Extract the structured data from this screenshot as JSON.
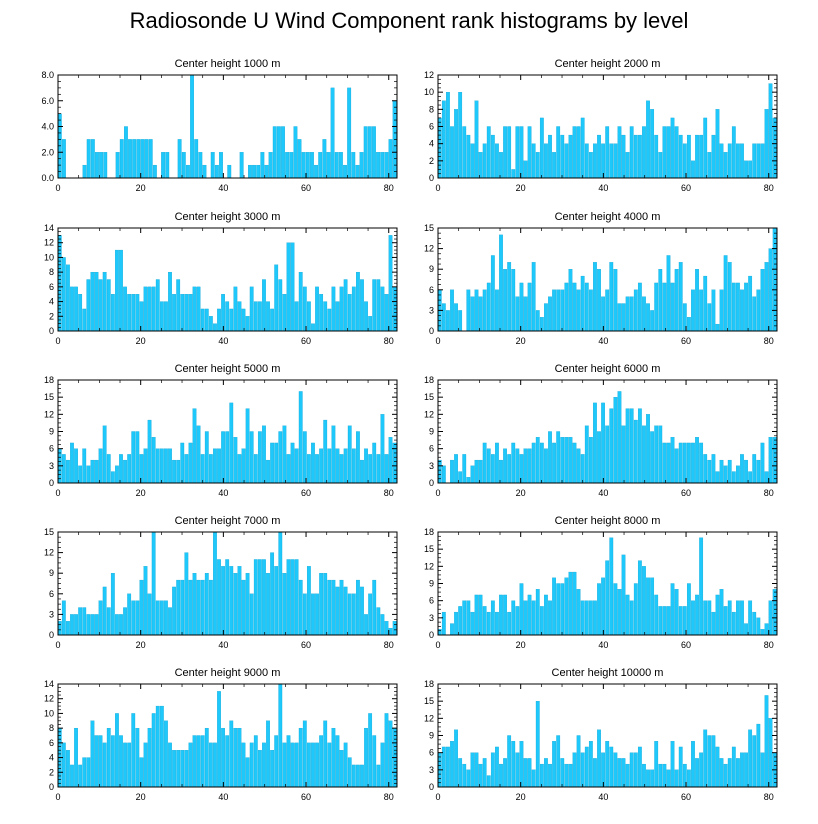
{
  "title": "Radiosonde U Wind Component rank histograms by level",
  "colors": {
    "bar": "#1ec8fa",
    "bar_edge": "#0aa0d0",
    "axis": "#000000"
  },
  "chart_data": [
    {
      "type": "bar",
      "title": "Center height 1000 m",
      "xlim": [
        0,
        82
      ],
      "ylim": [
        0,
        8
      ],
      "x_ticks": [
        "0",
        "20",
        "40",
        "60",
        "80"
      ],
      "x_tick_values": [
        0,
        20,
        40,
        60,
        80
      ],
      "y_ticks": [
        "0.0",
        "2.0",
        "4.0",
        "6.0",
        "8.0"
      ],
      "y_tick_values": [
        0,
        2,
        4,
        6,
        8
      ],
      "values": [
        5,
        3,
        0,
        0,
        0,
        0,
        1,
        3,
        3,
        2,
        2,
        2,
        0,
        0,
        2,
        3,
        4,
        3,
        3,
        3,
        3,
        3,
        3,
        1,
        0,
        2,
        2,
        0,
        0,
        3,
        2,
        1,
        8,
        3,
        2,
        1,
        0,
        2,
        1,
        2,
        0,
        1,
        0,
        0,
        2,
        0,
        1,
        1,
        1,
        2,
        1,
        2,
        4,
        4,
        4,
        2,
        2,
        4,
        3,
        2,
        2,
        2,
        1,
        2,
        3,
        2,
        7,
        2,
        2,
        1,
        7,
        2,
        1,
        2,
        4,
        4,
        4,
        2,
        2,
        2,
        3,
        6
      ]
    },
    {
      "type": "bar",
      "title": "Center height 2000 m",
      "xlim": [
        0,
        82
      ],
      "ylim": [
        0,
        12
      ],
      "x_ticks": [
        "0",
        "20",
        "40",
        "60",
        "80"
      ],
      "x_tick_values": [
        0,
        20,
        40,
        60,
        80
      ],
      "y_ticks": [
        "0",
        "2",
        "4",
        "6",
        "8",
        "10",
        "12"
      ],
      "y_tick_values": [
        0,
        2,
        4,
        6,
        8,
        10,
        12
      ],
      "values": [
        7,
        9,
        10,
        6,
        8,
        10,
        6,
        5,
        4,
        9,
        3,
        4,
        6,
        5,
        4,
        3,
        6,
        6,
        1,
        6,
        6,
        2,
        6,
        4,
        3,
        7,
        4,
        5,
        3,
        6,
        5,
        4,
        5,
        6,
        6,
        7,
        4,
        3,
        4,
        5,
        4,
        6,
        4,
        4,
        6,
        5,
        3,
        6,
        5,
        5,
        6,
        9,
        8,
        5,
        3,
        6,
        6,
        7,
        6,
        5,
        4,
        5,
        2,
        5,
        5,
        7,
        3,
        5,
        8,
        4,
        3,
        4,
        6,
        4,
        4,
        2,
        2,
        4,
        4,
        4,
        8,
        11,
        7
      ]
    },
    {
      "type": "bar",
      "title": "Center height 3000 m",
      "xlim": [
        0,
        82
      ],
      "ylim": [
        0,
        14
      ],
      "x_ticks": [
        "0",
        "20",
        "40",
        "60",
        "80"
      ],
      "x_tick_values": [
        0,
        20,
        40,
        60,
        80
      ],
      "y_ticks": [
        "0",
        "2",
        "4",
        "6",
        "8",
        "10",
        "12",
        "14"
      ],
      "y_tick_values": [
        0,
        2,
        4,
        6,
        8,
        10,
        12,
        14
      ],
      "values": [
        13,
        10,
        9,
        6,
        6,
        5,
        3,
        7,
        8,
        8,
        7,
        8,
        7,
        5,
        11,
        11,
        6,
        5,
        5,
        5,
        4,
        6,
        6,
        6,
        7,
        4,
        4,
        8,
        5,
        7,
        5,
        5,
        5,
        6,
        6,
        3,
        3,
        2,
        1,
        3,
        5,
        4,
        3,
        6,
        4,
        3,
        2,
        6,
        4,
        4,
        7,
        4,
        3,
        9,
        7,
        5,
        12,
        12,
        4,
        8,
        6,
        4,
        1,
        6,
        5,
        4,
        3,
        6,
        4,
        6,
        7,
        5,
        6,
        8,
        7,
        4,
        2,
        7,
        7,
        6,
        5,
        13,
        6
      ]
    },
    {
      "type": "bar",
      "title": "Center height 4000 m",
      "xlim": [
        0,
        82
      ],
      "ylim": [
        0,
        15
      ],
      "x_ticks": [
        "0",
        "20",
        "40",
        "60",
        "80"
      ],
      "x_tick_values": [
        0,
        20,
        40,
        60,
        80
      ],
      "y_ticks": [
        "0",
        "3",
        "6",
        "9",
        "12",
        "15"
      ],
      "y_tick_values": [
        0,
        3,
        6,
        9,
        12,
        15
      ],
      "values": [
        6,
        4,
        3,
        6,
        4,
        3,
        0,
        6,
        5,
        6,
        5,
        6,
        7,
        11,
        6,
        14,
        9,
        10,
        9,
        5,
        7,
        5,
        7,
        10,
        3,
        2,
        4,
        5,
        6,
        6,
        6,
        7,
        9,
        7,
        6,
        8,
        7,
        6,
        10,
        9,
        5,
        6,
        10,
        9,
        4,
        4,
        5,
        5,
        6,
        7,
        5,
        4,
        3,
        7,
        9,
        7,
        11,
        7,
        9,
        10,
        4,
        2,
        6,
        9,
        6,
        8,
        4,
        6,
        1,
        6,
        11,
        10,
        7,
        7,
        6,
        7,
        8,
        5,
        6,
        9,
        10,
        12,
        15
      ]
    },
    {
      "type": "bar",
      "title": "Center height 5000 m",
      "xlim": [
        0,
        82
      ],
      "ylim": [
        0,
        18
      ],
      "x_ticks": [
        "0",
        "20",
        "40",
        "60",
        "80"
      ],
      "x_tick_values": [
        0,
        20,
        40,
        60,
        80
      ],
      "y_ticks": [
        "0",
        "3",
        "6",
        "9",
        "12",
        "15",
        "18"
      ],
      "y_tick_values": [
        0,
        3,
        6,
        9,
        12,
        15,
        18
      ],
      "values": [
        6,
        5,
        4,
        7,
        6,
        3,
        6,
        3,
        4,
        4,
        6,
        10,
        5,
        2,
        3,
        5,
        4,
        5,
        9,
        9,
        5,
        6,
        11,
        8,
        6,
        6,
        6,
        6,
        4,
        4,
        7,
        5,
        7,
        13,
        10,
        5,
        9,
        5,
        6,
        6,
        9,
        9,
        14,
        8,
        5,
        6,
        13,
        9,
        5,
        9,
        10,
        4,
        7,
        7,
        9,
        10,
        5,
        7,
        6,
        16,
        9,
        5,
        7,
        5,
        6,
        11,
        6,
        10,
        6,
        5,
        6,
        10,
        6,
        9,
        4,
        6,
        5,
        7,
        5,
        12,
        5,
        8,
        7
      ]
    },
    {
      "type": "bar",
      "title": "Center height 6000 m",
      "xlim": [
        0,
        82
      ],
      "ylim": [
        0,
        18
      ],
      "x_ticks": [
        "0",
        "20",
        "40",
        "60",
        "80"
      ],
      "x_tick_values": [
        0,
        20,
        40,
        60,
        80
      ],
      "y_ticks": [
        "0",
        "3",
        "6",
        "9",
        "12",
        "15",
        "18"
      ],
      "y_tick_values": [
        0,
        3,
        6,
        9,
        12,
        15,
        18
      ],
      "values": [
        4,
        3,
        0,
        4,
        5,
        2,
        5,
        1,
        3,
        4,
        4,
        7,
        6,
        5,
        7,
        4,
        6,
        5,
        7,
        6,
        5,
        6,
        6,
        7,
        8,
        7,
        6,
        9,
        7,
        9,
        8,
        8,
        8,
        7,
        6,
        5,
        10,
        8,
        14,
        9,
        14,
        10,
        13,
        15,
        16,
        10,
        13,
        13,
        11,
        13,
        10,
        12,
        9,
        10,
        10,
        7,
        7,
        8,
        6,
        7,
        7,
        7,
        7,
        8,
        7,
        5,
        4,
        5,
        2,
        4,
        3,
        4,
        2,
        3,
        5,
        4,
        2,
        5,
        4,
        7,
        2,
        8,
        8
      ]
    },
    {
      "type": "bar",
      "title": "Center height 7000 m",
      "xlim": [
        0,
        82
      ],
      "ylim": [
        0,
        15
      ],
      "x_ticks": [
        "0",
        "20",
        "40",
        "60",
        "80"
      ],
      "x_tick_values": [
        0,
        20,
        40,
        60,
        80
      ],
      "y_ticks": [
        "0",
        "3",
        "6",
        "9",
        "12",
        "15"
      ],
      "y_tick_values": [
        0,
        3,
        6,
        9,
        12,
        15
      ],
      "values": [
        2,
        5,
        2,
        3,
        3,
        4,
        4,
        3,
        3,
        3,
        5,
        7,
        4,
        9,
        3,
        3,
        4,
        6,
        5,
        5,
        8,
        10,
        6,
        15,
        5,
        5,
        5,
        4,
        7,
        8,
        8,
        12,
        8,
        9,
        8,
        8,
        9,
        8,
        15,
        11,
        10,
        11,
        10,
        9,
        10,
        8,
        9,
        6,
        11,
        11,
        11,
        9,
        12,
        10,
        15,
        9,
        11,
        11,
        11,
        8,
        6,
        10,
        6,
        6,
        9,
        9,
        8,
        8,
        7,
        8,
        7,
        6,
        6,
        8,
        7,
        3,
        6,
        8,
        4,
        3,
        2,
        1,
        2
      ]
    },
    {
      "type": "bar",
      "title": "Center height 8000 m",
      "xlim": [
        0,
        82
      ],
      "ylim": [
        0,
        18
      ],
      "x_ticks": [
        "0",
        "20",
        "40",
        "60",
        "80"
      ],
      "x_tick_values": [
        0,
        20,
        40,
        60,
        80
      ],
      "y_ticks": [
        "0",
        "3",
        "6",
        "9",
        "12",
        "15",
        "18"
      ],
      "y_tick_values": [
        0,
        3,
        6,
        9,
        12,
        15,
        18
      ],
      "values": [
        1,
        4,
        0,
        2,
        4,
        5,
        6,
        6,
        4,
        7,
        7,
        5,
        4,
        6,
        4,
        7,
        7,
        4,
        6,
        5,
        9,
        6,
        7,
        6,
        8,
        5,
        7,
        6,
        10,
        9,
        9,
        10,
        11,
        11,
        8,
        6,
        6,
        6,
        6,
        9,
        10,
        13,
        17,
        9,
        8,
        14,
        7,
        6,
        9,
        13,
        12,
        10,
        10,
        7,
        5,
        5,
        5,
        9,
        8,
        5,
        5,
        9,
        6,
        7,
        17,
        6,
        6,
        4,
        7,
        8,
        5,
        6,
        4,
        6,
        6,
        2,
        6,
        4,
        3,
        1,
        2,
        6,
        8
      ]
    },
    {
      "type": "bar",
      "title": "Center height 9000 m",
      "xlim": [
        0,
        82
      ],
      "ylim": [
        0,
        14
      ],
      "x_ticks": [
        "0",
        "20",
        "40",
        "60",
        "80"
      ],
      "x_tick_values": [
        0,
        20,
        40,
        60,
        80
      ],
      "y_ticks": [
        "0",
        "2",
        "4",
        "6",
        "8",
        "10",
        "12",
        "14"
      ],
      "y_tick_values": [
        0,
        2,
        4,
        6,
        8,
        10,
        12,
        14
      ],
      "values": [
        8,
        6,
        5,
        3,
        8,
        3,
        4,
        4,
        9,
        7,
        7,
        6,
        8,
        7,
        10,
        7,
        6,
        6,
        10,
        8,
        4,
        6,
        8,
        10,
        11,
        11,
        9,
        6,
        5,
        5,
        5,
        5,
        6,
        7,
        7,
        7,
        8,
        6,
        6,
        13,
        8,
        7,
        9,
        8,
        8,
        6,
        4,
        6,
        7,
        5,
        6,
        9,
        5,
        7,
        14,
        6,
        7,
        6,
        6,
        8,
        9,
        6,
        6,
        6,
        7,
        9,
        6,
        8,
        7,
        5,
        6,
        4,
        3,
        3,
        3,
        8,
        10,
        7,
        3,
        6,
        10,
        9,
        8
      ]
    },
    {
      "type": "bar",
      "title": "Center height 10000 m",
      "xlim": [
        0,
        82
      ],
      "ylim": [
        0,
        18
      ],
      "x_ticks": [
        "0",
        "20",
        "40",
        "60",
        "80"
      ],
      "x_tick_values": [
        0,
        20,
        40,
        60,
        80
      ],
      "y_ticks": [
        "0",
        "3",
        "6",
        "9",
        "12",
        "15",
        "18"
      ],
      "y_tick_values": [
        0,
        3,
        6,
        9,
        12,
        15,
        18
      ],
      "values": [
        6,
        7,
        7,
        8,
        10,
        5,
        4,
        3,
        6,
        6,
        4,
        5,
        2,
        6,
        7,
        4,
        5,
        9,
        8,
        6,
        8,
        5,
        5,
        3,
        15,
        4,
        5,
        4,
        8,
        9,
        5,
        4,
        4,
        6,
        9,
        6,
        7,
        8,
        5,
        10,
        6,
        8,
        7,
        6,
        5,
        5,
        4,
        6,
        6,
        7,
        4,
        3,
        3,
        8,
        4,
        4,
        3,
        8,
        3,
        7,
        4,
        3,
        8,
        5,
        6,
        10,
        9,
        9,
        7,
        5,
        4,
        5,
        7,
        5,
        6,
        6,
        10,
        9,
        11,
        6,
        16,
        12,
        6
      ]
    }
  ]
}
